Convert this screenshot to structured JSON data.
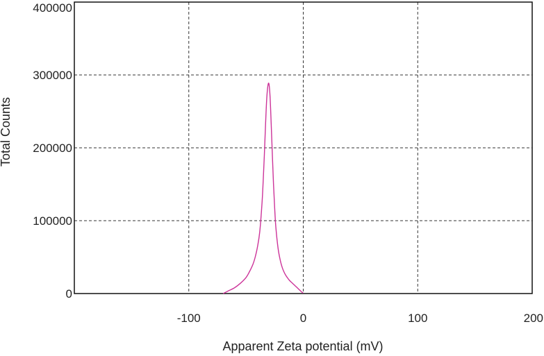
{
  "chart_data": {
    "type": "line",
    "title": "",
    "xlabel": "Apparent Zeta potential (mV)",
    "ylabel": "Total Counts",
    "xlim": [
      -200,
      200
    ],
    "ylim": [
      0,
      400000
    ],
    "grid": true,
    "x_ticks": [
      -100,
      0,
      100,
      200
    ],
    "x_tick_labels": [
      "-100",
      "0",
      "100",
      "200"
    ],
    "y_ticks": [
      0,
      100000,
      200000,
      300000,
      400000
    ],
    "y_tick_labels": [
      "0",
      "100000",
      "200000",
      "300000",
      "400000"
    ],
    "series": [
      {
        "color": "#cc3399",
        "x": [
          -70,
          -65,
          -60,
          -55,
          -50,
          -47,
          -44,
          -42,
          -40,
          -38,
          -36,
          -35,
          -34,
          -33,
          -32,
          -31,
          -30,
          -29,
          -28,
          -27,
          -26,
          -25,
          -24,
          -22,
          -20,
          -18,
          -16,
          -14,
          -12,
          -10,
          -8,
          -6,
          -4,
          -2,
          0
        ],
        "y": [
          0,
          4000,
          8000,
          14000,
          22000,
          30000,
          40000,
          50000,
          64000,
          85000,
          125000,
          155000,
          190000,
          230000,
          265000,
          284000,
          288000,
          270000,
          232000,
          190000,
          150000,
          118000,
          92000,
          62000,
          45000,
          34000,
          27000,
          22000,
          18000,
          15000,
          12000,
          9000,
          6000,
          3000,
          500
        ]
      }
    ]
  }
}
